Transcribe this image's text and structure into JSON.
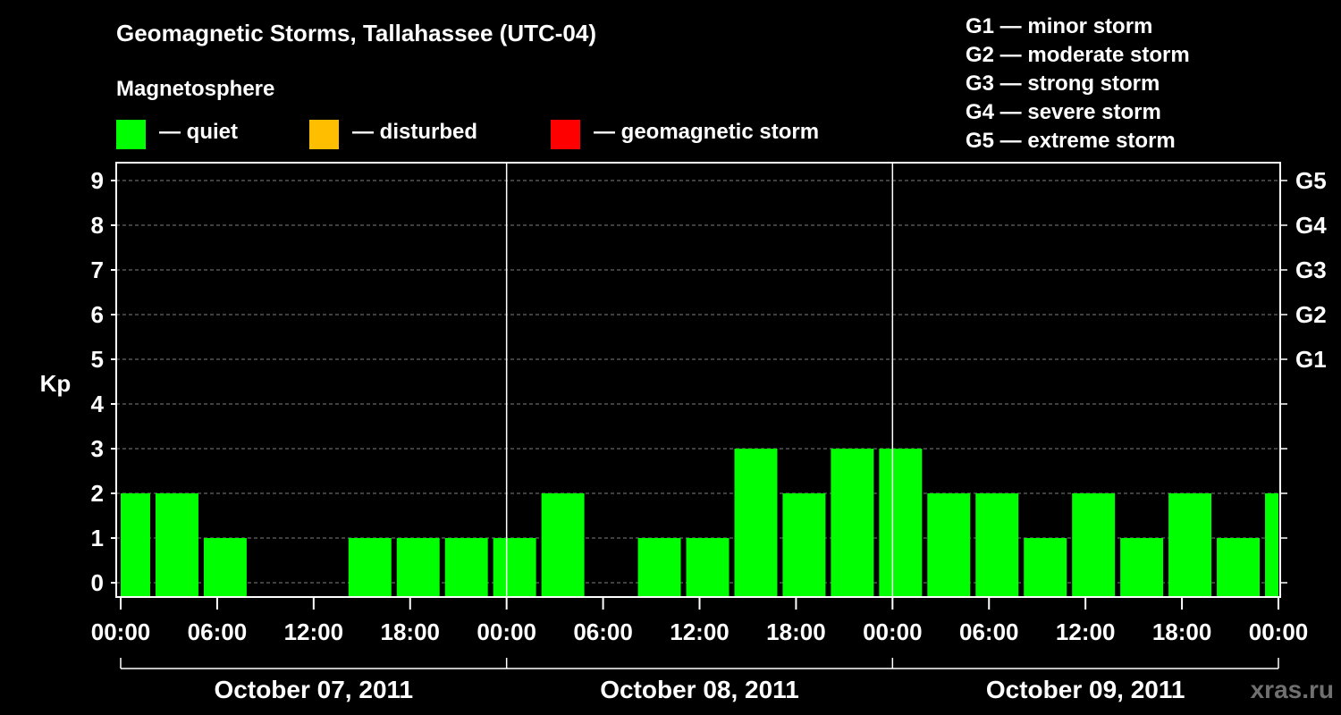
{
  "title": "Geomagnetic Storms, Tallahassee (UTC-04)",
  "legend": {
    "heading": "Magnetosphere",
    "items": [
      {
        "label": "— quiet",
        "color": "#00ff00"
      },
      {
        "label": "— disturbed",
        "color": "#ffbf00"
      },
      {
        "label": "— geomagnetic storm",
        "color": "#ff0000"
      }
    ]
  },
  "scale": [
    "G1 — minor storm",
    "G2 — moderate storm",
    "G3 — strong storm",
    "G4 — severe storm",
    "G5 — extreme storm"
  ],
  "watermark": "xras.ru",
  "chart_data": {
    "type": "bar",
    "title": "Geomagnetic Storms, Tallahassee (UTC-04)",
    "ylabel": "Kp",
    "ylim": [
      0,
      9
    ],
    "yticks": [
      "0",
      "1",
      "2",
      "3",
      "4",
      "5",
      "6",
      "7",
      "8",
      "9"
    ],
    "right_axis": [
      {
        "kp": 5,
        "label": "G1"
      },
      {
        "kp": 6,
        "label": "G2"
      },
      {
        "kp": 7,
        "label": "G3"
      },
      {
        "kp": 8,
        "label": "G4"
      },
      {
        "kp": 9,
        "label": "G5"
      }
    ],
    "x_range_hours": [
      0,
      72
    ],
    "xticks": [
      {
        "hour": 0,
        "label": "00:00"
      },
      {
        "hour": 6,
        "label": "06:00"
      },
      {
        "hour": 12,
        "label": "12:00"
      },
      {
        "hour": 18,
        "label": "18:00"
      },
      {
        "hour": 24,
        "label": "00:00"
      },
      {
        "hour": 30,
        "label": "06:00"
      },
      {
        "hour": 36,
        "label": "12:00"
      },
      {
        "hour": 42,
        "label": "18:00"
      },
      {
        "hour": 48,
        "label": "00:00"
      },
      {
        "hour": 54,
        "label": "06:00"
      },
      {
        "hour": 60,
        "label": "12:00"
      },
      {
        "hour": 66,
        "label": "18:00"
      },
      {
        "hour": 72,
        "label": "00:00"
      }
    ],
    "days": [
      {
        "label": "October 07, 2011",
        "start": 0,
        "end": 24
      },
      {
        "label": "October 08, 2011",
        "start": 24,
        "end": 48
      },
      {
        "label": "October 09, 2011",
        "start": 48,
        "end": 72
      }
    ],
    "series": [
      {
        "name": "Kp",
        "color": "#00ff00",
        "bars": [
          {
            "start": 0,
            "end": 2,
            "value": 2
          },
          {
            "start": 2,
            "end": 5,
            "value": 2
          },
          {
            "start": 5,
            "end": 8,
            "value": 1
          },
          {
            "start": 14,
            "end": 17,
            "value": 1
          },
          {
            "start": 17,
            "end": 20,
            "value": 1
          },
          {
            "start": 20,
            "end": 23,
            "value": 1
          },
          {
            "start": 23,
            "end": 26,
            "value": 1
          },
          {
            "start": 26,
            "end": 29,
            "value": 2
          },
          {
            "start": 32,
            "end": 35,
            "value": 1
          },
          {
            "start": 35,
            "end": 38,
            "value": 1
          },
          {
            "start": 38,
            "end": 41,
            "value": 3
          },
          {
            "start": 41,
            "end": 44,
            "value": 2
          },
          {
            "start": 44,
            "end": 47,
            "value": 3
          },
          {
            "start": 47,
            "end": 50,
            "value": 3
          },
          {
            "start": 50,
            "end": 53,
            "value": 2
          },
          {
            "start": 53,
            "end": 56,
            "value": 2
          },
          {
            "start": 56,
            "end": 59,
            "value": 1
          },
          {
            "start": 59,
            "end": 62,
            "value": 2
          },
          {
            "start": 62,
            "end": 65,
            "value": 1
          },
          {
            "start": 65,
            "end": 68,
            "value": 2
          },
          {
            "start": 68,
            "end": 71,
            "value": 1
          },
          {
            "start": 71,
            "end": 72,
            "value": 2
          }
        ]
      }
    ]
  }
}
